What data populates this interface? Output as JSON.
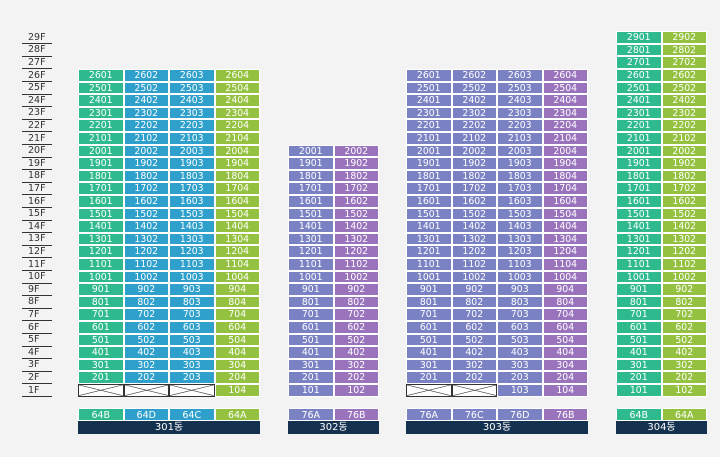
{
  "floors": [
    "1F",
    "2F",
    "3F",
    "4F",
    "5F",
    "6F",
    "7F",
    "8F",
    "9F",
    "10F",
    "11F",
    "12F",
    "13F",
    "14F",
    "15F",
    "16F",
    "17F",
    "18F",
    "19F",
    "20F",
    "21F",
    "22F",
    "23F",
    "24F",
    "25F",
    "26F",
    "27F",
    "28F",
    "29F"
  ],
  "colors": {
    "green": "#2fba8e",
    "blue": "#2fa0cc",
    "lime": "#94c13f",
    "slate": "#7b82c4",
    "purple": "#9a73bd",
    "label_bg": "#14314f"
  },
  "buildings": [
    {
      "name": "301동",
      "top_floor": 26,
      "columns": [
        {
          "line": "01",
          "type": "64B",
          "color": "green",
          "empty_floors": [
            1
          ]
        },
        {
          "line": "02",
          "type": "64D",
          "color": "blue",
          "empty_floors": [
            1
          ]
        },
        {
          "line": "03",
          "type": "64C",
          "color": "blue",
          "empty_floors": [
            1
          ]
        },
        {
          "line": "04",
          "type": "64A",
          "color": "lime",
          "empty_floors": []
        }
      ]
    },
    {
      "name": "302동",
      "top_floor": 20,
      "columns": [
        {
          "line": "01",
          "type": "76A",
          "color": "slate",
          "empty_floors": []
        },
        {
          "line": "02",
          "type": "76B",
          "color": "purple",
          "empty_floors": []
        }
      ]
    },
    {
      "name": "303동",
      "top_floor": 26,
      "columns": [
        {
          "line": "01",
          "type": "76A",
          "color": "slate",
          "empty_floors": [
            1
          ]
        },
        {
          "line": "02",
          "type": "76C",
          "color": "slate",
          "empty_floors": [
            1
          ]
        },
        {
          "line": "03",
          "type": "76D",
          "color": "slate",
          "empty_floors": []
        },
        {
          "line": "04",
          "type": "76B",
          "color": "purple",
          "empty_floors": []
        }
      ]
    },
    {
      "name": "304동",
      "top_floor": 29,
      "columns": [
        {
          "line": "01",
          "type": "64B",
          "color": "green",
          "empty_floors": []
        },
        {
          "line": "02",
          "type": "64A",
          "color": "lime",
          "empty_floors": []
        }
      ]
    }
  ]
}
